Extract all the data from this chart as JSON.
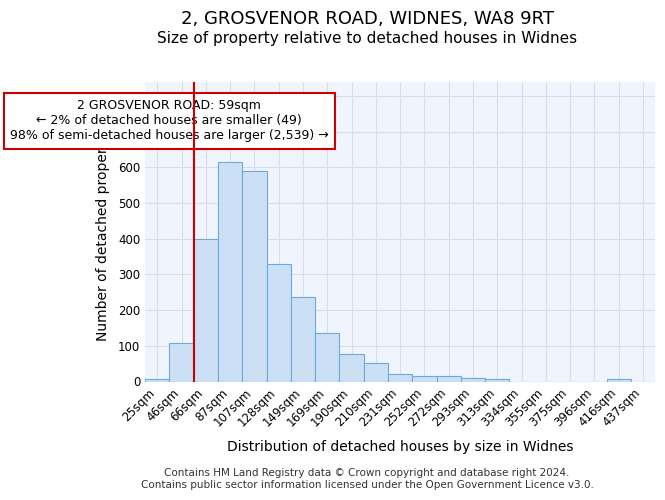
{
  "title_line1": "2, GROSVENOR ROAD, WIDNES, WA8 9RT",
  "title_line2": "Size of property relative to detached houses in Widnes",
  "xlabel": "Distribution of detached houses by size in Widnes",
  "ylabel": "Number of detached properties",
  "categories": [
    "25sqm",
    "46sqm",
    "66sqm",
    "87sqm",
    "107sqm",
    "128sqm",
    "149sqm",
    "169sqm",
    "190sqm",
    "210sqm",
    "231sqm",
    "252sqm",
    "272sqm",
    "293sqm",
    "313sqm",
    "334sqm",
    "355sqm",
    "375sqm",
    "396sqm",
    "416sqm",
    "437sqm"
  ],
  "values": [
    8,
    107,
    400,
    615,
    590,
    328,
    237,
    135,
    77,
    53,
    22,
    15,
    15,
    10,
    8,
    0,
    0,
    0,
    0,
    8,
    0
  ],
  "bar_color": "#cce0f5",
  "bar_edge_color": "#6aaadd",
  "red_line_index": 1.5,
  "annotation_text": "2 GROSVENOR ROAD: 59sqm\n← 2% of detached houses are smaller (49)\n98% of semi-detached houses are larger (2,539) →",
  "annotation_box_color": "#ffffff",
  "annotation_box_edge_color": "#cc0000",
  "red_line_color": "#cc0000",
  "ylim": [
    0,
    840
  ],
  "yticks": [
    0,
    100,
    200,
    300,
    400,
    500,
    600,
    700,
    800
  ],
  "footer_line1": "Contains HM Land Registry data © Crown copyright and database right 2024.",
  "footer_line2": "Contains public sector information licensed under the Open Government Licence v3.0.",
  "fig_background_color": "#ffffff",
  "plot_background_color": "#f0f4fc",
  "grid_color": "#d8dde8",
  "title_fontsize": 13,
  "subtitle_fontsize": 11,
  "axis_label_fontsize": 10,
  "tick_fontsize": 8.5,
  "footer_fontsize": 7.5,
  "annotation_fontsize": 9
}
